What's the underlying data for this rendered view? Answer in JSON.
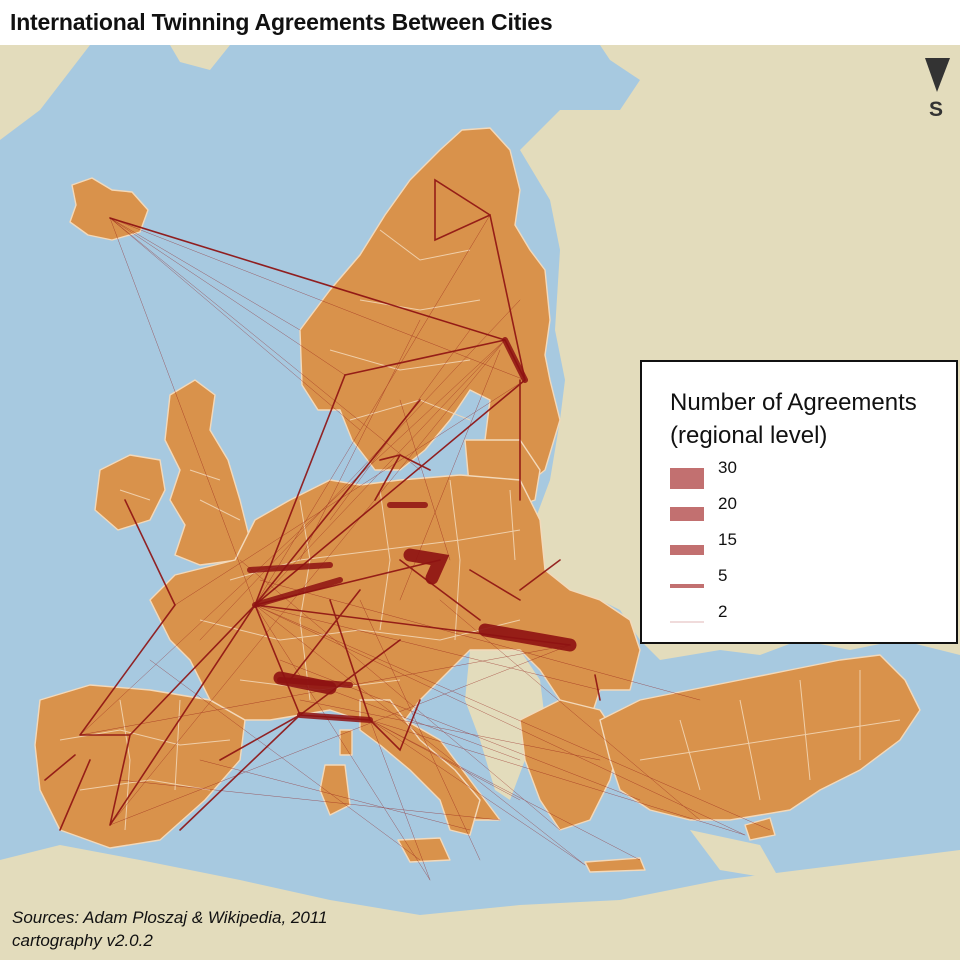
{
  "title": "International Twinning Agreements Between Cities",
  "legend": {
    "title_line1": "Number of Agreements",
    "title_line2": "(regional level)",
    "entries": [
      {
        "label": "30",
        "value": 30
      },
      {
        "label": "20",
        "value": 20
      },
      {
        "label": "15",
        "value": 15
      },
      {
        "label": "5",
        "value": 5
      },
      {
        "label": "2",
        "value": 2
      }
    ]
  },
  "compass": {
    "label": "S",
    "icon": "south-arrow-icon"
  },
  "sources": {
    "line1": "Sources: Adam Ploszaj & Wikipedia, 2011",
    "line2": "cartography v2.0.2"
  },
  "colors": {
    "sea": "#a7c9e0",
    "land_other": "#e3dcbc",
    "land_eu": "#d9924b",
    "region_border": "#f3d9ba",
    "flow": "#8e1212",
    "legend_swatch": "#c27070"
  }
}
